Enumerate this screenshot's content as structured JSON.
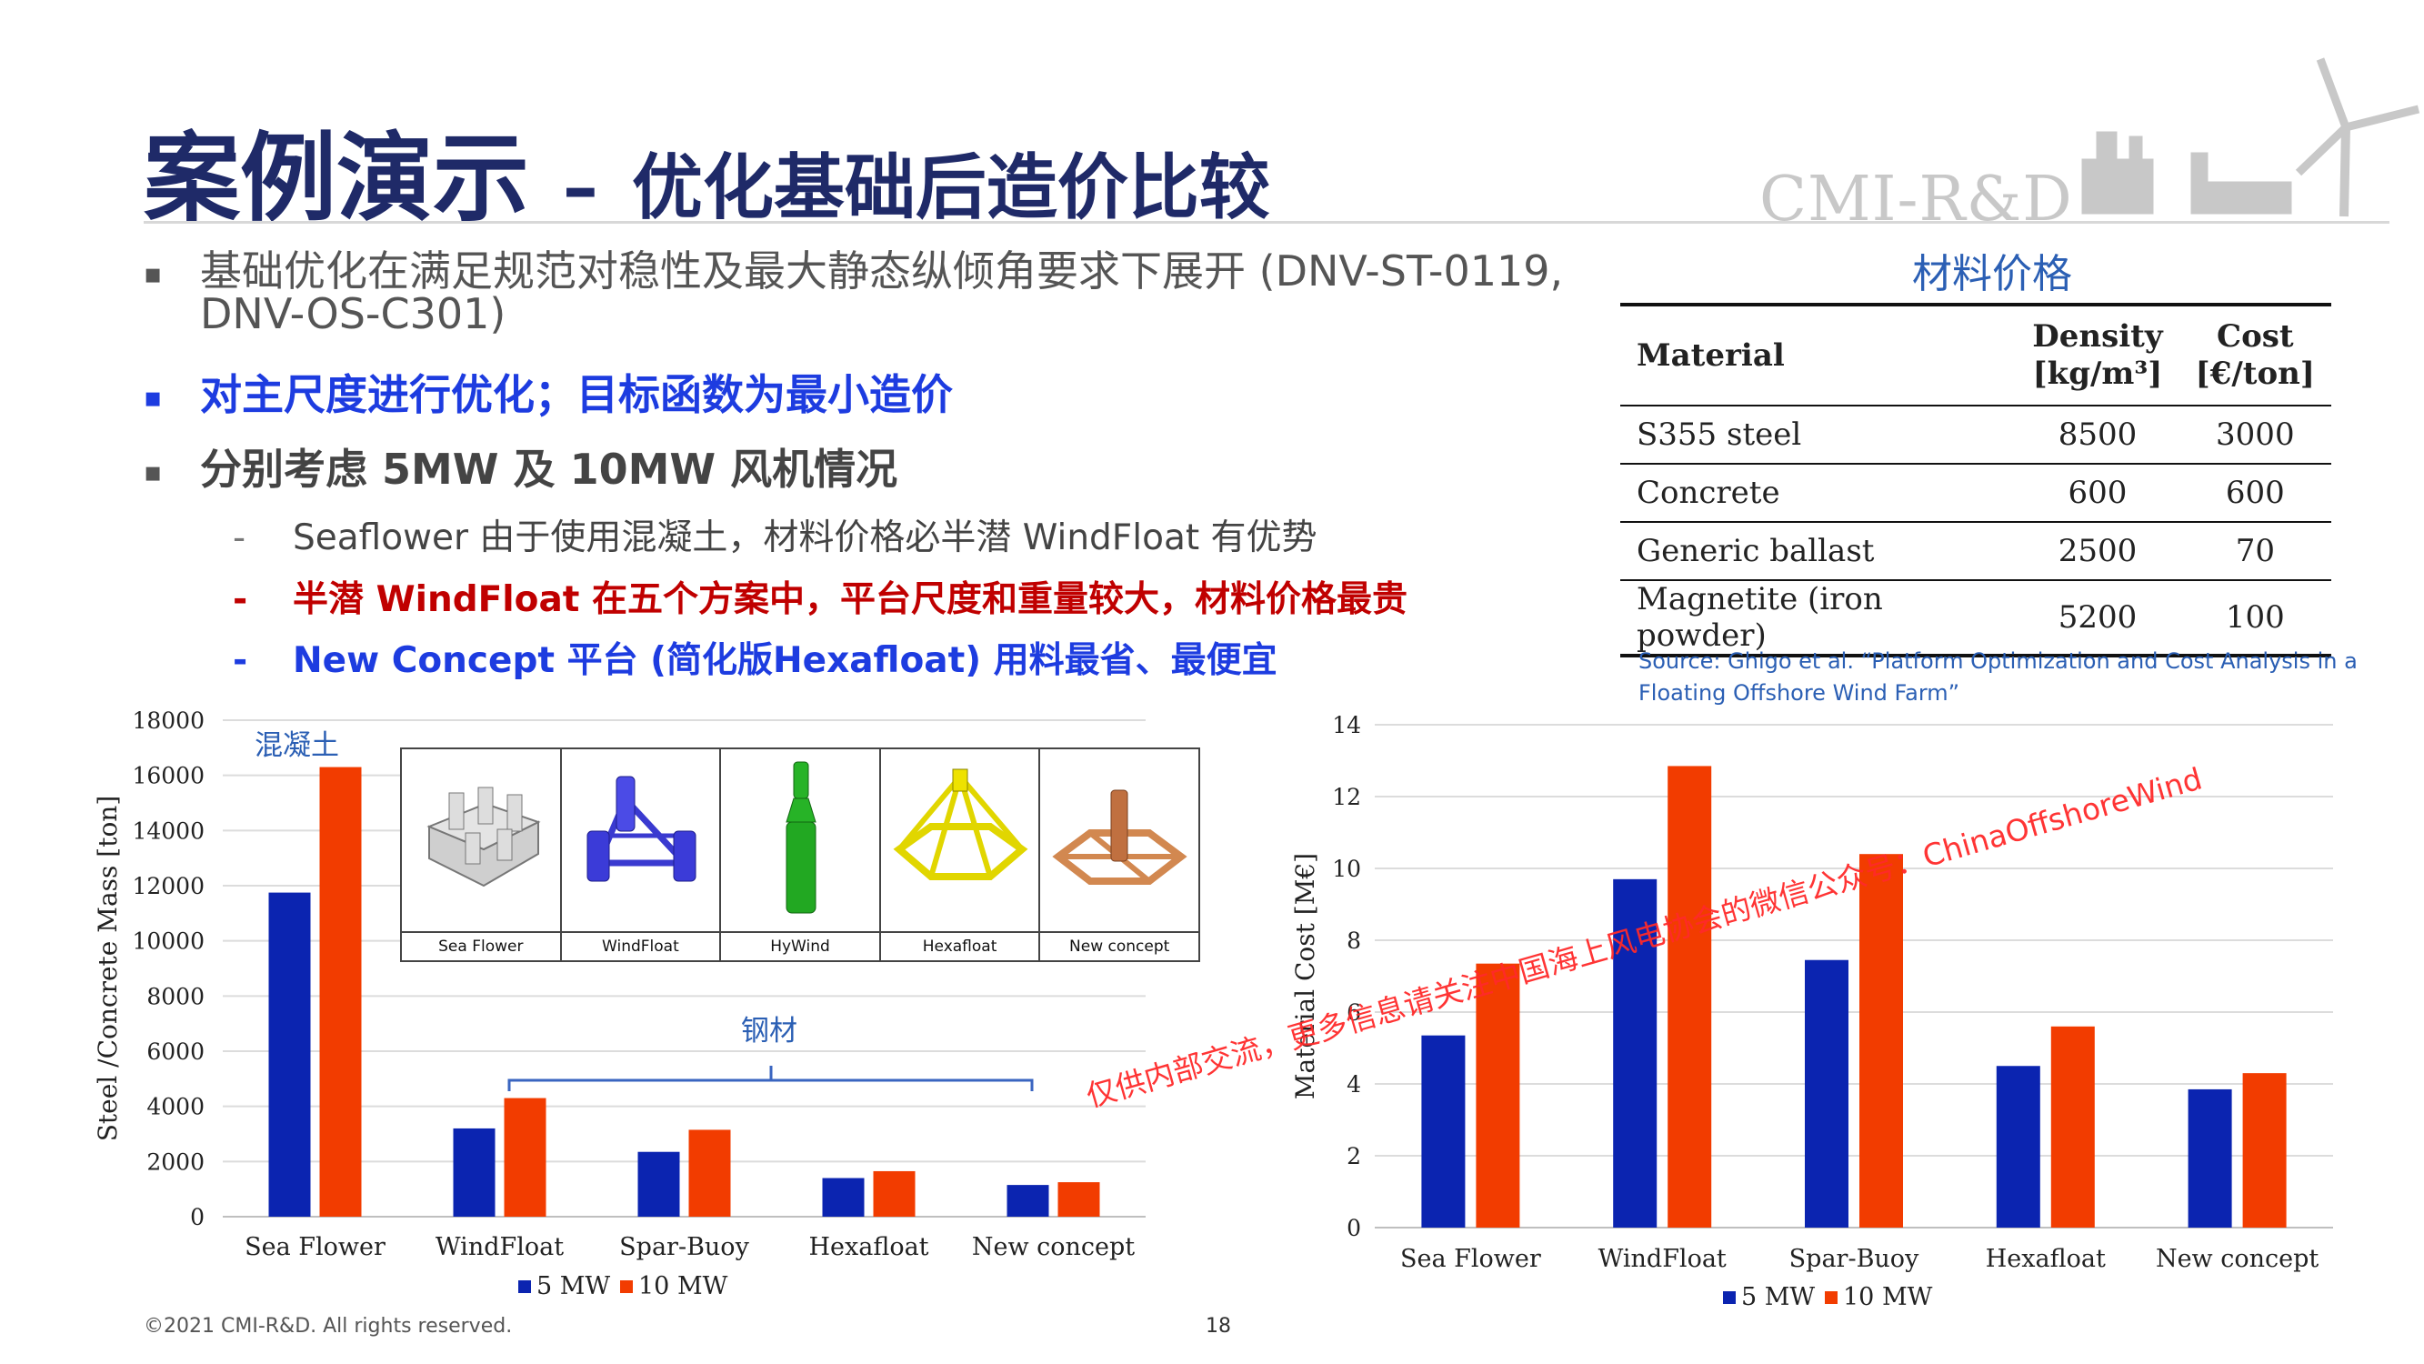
{
  "title": {
    "main": "案例演示",
    "sep": "–",
    "sub": "优化基础后造价比较"
  },
  "logo": "CMI-R&D",
  "bullets": {
    "b1_line1": "基础优化在满足规范对稳性及最大静态纵倾角要求下展开 (DNV-ST-0119,",
    "b1_line2": "DNV-OS-C301)",
    "b2": "对主尺度进行优化；目标函数为最小造价",
    "b3": "分别考虑 5MW 及 10MW 风机情况",
    "s1": "Seaflower 由于使用混凝土，材料价格必半潜 WindFloat 有优势",
    "s2": "半潜 WindFloat 在五个方案中，平台尺度和重量较大，材料价格最贵",
    "s3": "New Concept 平台 (简化版Hexafloat) 用料最省、最便宜",
    "marker": "▪",
    "dash": "-"
  },
  "material_table": {
    "title": "材料价格",
    "headers": [
      "Material",
      "Density",
      "[kg/m³]",
      "Cost",
      "[€/ton]"
    ],
    "rows": [
      [
        "S355 steel",
        "8500",
        "3000"
      ],
      [
        "Concrete",
        "600",
        "600"
      ],
      [
        "Generic ballast",
        "2500",
        "70"
      ],
      [
        "Magnetite (iron powder)",
        "5200",
        "100"
      ]
    ],
    "source": "Source: Ghigo et al. “Platform Optimization and Cost Analysis in a Floating Offshore Wind Farm”"
  },
  "inset": {
    "labels": [
      "Sea Flower",
      "WindFloat",
      "HyWind",
      "Hexafloat",
      "New concept"
    ]
  },
  "chart_data": [
    {
      "type": "bar",
      "ylabel": "Steel /Concrete Mass [ton]",
      "categories": [
        "Sea Flower",
        "WindFloat",
        "Spar-Buoy",
        "Hexafloat",
        "New concept"
      ],
      "ylim": [
        0,
        18000
      ],
      "yticks": [
        0,
        2000,
        4000,
        6000,
        8000,
        10000,
        12000,
        14000,
        16000,
        18000
      ],
      "grid": true,
      "series": [
        {
          "name": "5 MW",
          "color": "#0b24b0",
          "values": [
            11750,
            3200,
            2350,
            1400,
            1150
          ]
        },
        {
          "name": "10 MW",
          "color": "#f23c00",
          "values": [
            16300,
            4300,
            3150,
            1650,
            1250
          ]
        }
      ],
      "annotations": [
        "混凝土",
        "钢材"
      ],
      "legend": "bottom"
    },
    {
      "type": "bar",
      "ylabel": "Material Cost [M€]",
      "categories": [
        "Sea Flower",
        "WindFloat",
        "Spar-Buoy",
        "Hexafloat",
        "New concept"
      ],
      "ylim": [
        0,
        14
      ],
      "yticks": [
        0,
        2,
        4,
        6,
        8,
        10,
        12,
        14
      ],
      "grid": true,
      "series": [
        {
          "name": "5 MW",
          "color": "#0b24b0",
          "values": [
            5.35,
            9.7,
            7.45,
            4.5,
            3.85
          ]
        },
        {
          "name": "10 MW",
          "color": "#f23c00",
          "values": [
            7.35,
            12.85,
            10.4,
            5.6,
            4.3
          ]
        }
      ],
      "legend": "bottom"
    }
  ],
  "watermark": "仅供内部交流，更多信息请关注中国海上风电协会的微信公众号：ChinaOffshoreWind",
  "footer": "©2021 CMI-R&D. All rights reserved.",
  "page_number": "18"
}
